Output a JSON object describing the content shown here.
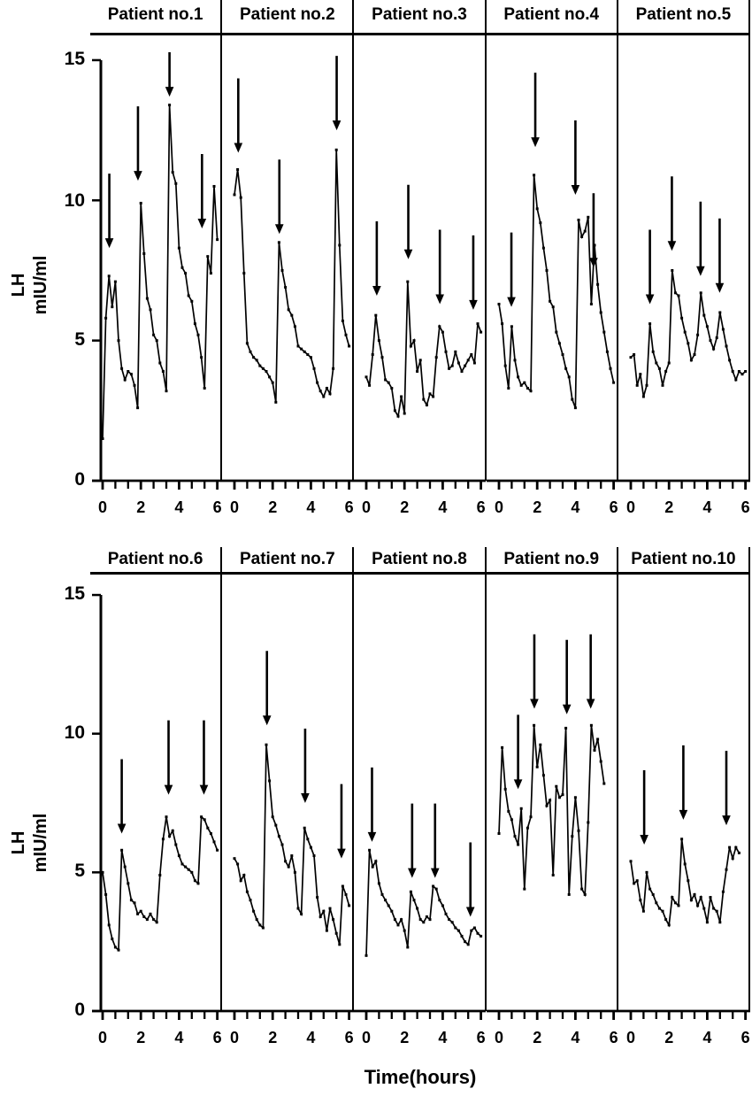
{
  "figure": {
    "ylabel_line1": "LH",
    "ylabel_line2": "mIU/ml",
    "xlabel": "Time(hours)",
    "y_ticks": [
      0,
      5,
      10,
      15
    ],
    "x_ticks": [
      0,
      2,
      4,
      6
    ]
  },
  "chart_data": {
    "type": "line",
    "title": "",
    "xlabel": "Time(hours)",
    "ylabel": "LH mIU/ml",
    "xlim": [
      0,
      6
    ],
    "ylim": [
      0,
      15
    ],
    "x_ticks": [
      0,
      2,
      4,
      6
    ],
    "y_ticks": [
      0,
      5,
      10,
      15
    ],
    "grid": false,
    "legend": "none",
    "sample_interval_hours": 0.1667,
    "marker": "square",
    "line_color": "#000000",
    "annotation_symbol": "down-arrow (LH pulse)",
    "panels": [
      {
        "label": "Patient no.1",
        "arrows": [
          {
            "t": 0.35,
            "tip": 8.3
          },
          {
            "t": 1.85,
            "tip": 10.7
          },
          {
            "t": 3.5,
            "tip": 13.7
          },
          {
            "t": 5.2,
            "tip": 9.0
          }
        ],
        "values": [
          1.5,
          5.8,
          7.3,
          6.2,
          7.1,
          5.0,
          4.0,
          3.6,
          3.9,
          3.8,
          3.4,
          2.6,
          9.9,
          8.1,
          6.5,
          6.1,
          5.2,
          5.0,
          4.2,
          3.9,
          3.2,
          13.4,
          11.0,
          10.6,
          8.3,
          7.6,
          7.4,
          6.6,
          6.4,
          5.6,
          5.2,
          4.4,
          3.3,
          8.0,
          7.4,
          10.5,
          8.6
        ]
      },
      {
        "label": "Patient no.2",
        "arrows": [
          {
            "t": 0.2,
            "tip": 11.7
          },
          {
            "t": 2.35,
            "tip": 8.8
          },
          {
            "t": 5.35,
            "tip": 12.5
          }
        ],
        "values": [
          10.2,
          11.1,
          10.1,
          7.4,
          4.9,
          4.6,
          4.4,
          4.3,
          4.1,
          4.0,
          3.9,
          3.7,
          3.5,
          2.8,
          8.5,
          7.5,
          6.9,
          6.1,
          5.9,
          5.5,
          4.8,
          4.7,
          4.6,
          4.5,
          4.4,
          4.0,
          3.5,
          3.2,
          3.0,
          3.3,
          3.1,
          4.0,
          11.8,
          8.4,
          5.7,
          5.2,
          4.8
        ]
      },
      {
        "label": "Patient no.3",
        "arrows": [
          {
            "t": 0.55,
            "tip": 6.6
          },
          {
            "t": 2.2,
            "tip": 7.9
          },
          {
            "t": 3.85,
            "tip": 6.3
          },
          {
            "t": 5.6,
            "tip": 6.1
          }
        ],
        "values": [
          3.7,
          3.4,
          4.5,
          5.9,
          5.0,
          4.4,
          3.6,
          3.5,
          3.3,
          2.5,
          2.3,
          3.0,
          2.4,
          7.1,
          4.8,
          5.0,
          3.9,
          4.3,
          2.9,
          2.7,
          3.1,
          3.0,
          4.4,
          5.5,
          5.3,
          4.6,
          4.0,
          4.1,
          4.6,
          4.2,
          3.9,
          4.1,
          4.3,
          4.5,
          4.2,
          5.6,
          5.3
        ]
      },
      {
        "label": "Patient no.4",
        "arrows": [
          {
            "t": 0.65,
            "tip": 6.2
          },
          {
            "t": 1.9,
            "tip": 11.9
          },
          {
            "t": 4.0,
            "tip": 10.2
          },
          {
            "t": 4.95,
            "tip": 7.6
          }
        ],
        "values": [
          6.3,
          5.6,
          4.1,
          3.3,
          5.5,
          4.3,
          3.7,
          3.4,
          3.5,
          3.3,
          3.2,
          10.9,
          9.7,
          9.2,
          8.3,
          7.5,
          6.4,
          6.2,
          5.3,
          4.9,
          4.5,
          4.0,
          3.7,
          2.9,
          2.6,
          9.3,
          8.7,
          8.9,
          9.4,
          6.3,
          8.4,
          7.0,
          6.0,
          5.3,
          4.6,
          4.0,
          3.5
        ]
      },
      {
        "label": "Patient no.5",
        "arrows": [
          {
            "t": 1.0,
            "tip": 6.3
          },
          {
            "t": 2.15,
            "tip": 8.2
          },
          {
            "t": 3.65,
            "tip": 7.3
          },
          {
            "t": 4.65,
            "tip": 6.7
          }
        ],
        "values": [
          4.4,
          4.5,
          3.4,
          3.8,
          3.0,
          3.4,
          5.6,
          4.6,
          4.2,
          4.0,
          3.4,
          3.9,
          4.2,
          7.5,
          6.7,
          6.6,
          5.8,
          5.3,
          4.9,
          4.3,
          4.5,
          5.2,
          6.7,
          5.9,
          5.5,
          5.0,
          4.7,
          5.1,
          6.0,
          5.4,
          4.8,
          4.3,
          3.9,
          3.6,
          3.9,
          3.8,
          3.9
        ]
      },
      {
        "label": "Patient no.6",
        "arrows": [
          {
            "t": 1.0,
            "tip": 6.4
          },
          {
            "t": 3.45,
            "tip": 7.8
          },
          {
            "t": 5.3,
            "tip": 7.8
          }
        ],
        "values": [
          5.0,
          4.2,
          3.1,
          2.6,
          2.3,
          2.2,
          5.8,
          5.2,
          4.6,
          4.0,
          3.9,
          3.5,
          3.6,
          3.4,
          3.3,
          3.5,
          3.3,
          3.2,
          4.9,
          6.2,
          7.0,
          6.3,
          6.5,
          6.0,
          5.6,
          5.3,
          5.2,
          5.1,
          5.0,
          4.7,
          4.6,
          7.0,
          6.9,
          6.6,
          6.4,
          6.1,
          5.8
        ]
      },
      {
        "label": "Patient no.7",
        "arrows": [
          {
            "t": 1.7,
            "tip": 10.3
          },
          {
            "t": 3.7,
            "tip": 7.5
          },
          {
            "t": 5.6,
            "tip": 5.5
          }
        ],
        "values": [
          5.5,
          5.3,
          4.7,
          4.9,
          4.3,
          4.0,
          3.6,
          3.3,
          3.1,
          3.0,
          9.6,
          8.3,
          7.0,
          6.7,
          6.3,
          6.0,
          5.4,
          5.2,
          5.6,
          5.0,
          3.7,
          3.5,
          6.6,
          6.2,
          5.9,
          5.6,
          4.1,
          3.4,
          3.6,
          2.9,
          3.7,
          3.3,
          2.8,
          2.4,
          4.5,
          4.2,
          3.8
        ]
      },
      {
        "label": "Patient no.8",
        "arrows": [
          {
            "t": 0.3,
            "tip": 6.1
          },
          {
            "t": 2.4,
            "tip": 4.8
          },
          {
            "t": 3.6,
            "tip": 4.8
          },
          {
            "t": 5.45,
            "tip": 3.4
          }
        ],
        "values": [
          2.0,
          5.8,
          5.2,
          5.4,
          4.6,
          4.2,
          4.0,
          3.8,
          3.6,
          3.3,
          3.1,
          3.3,
          2.9,
          2.3,
          4.3,
          4.0,
          3.7,
          3.3,
          3.2,
          3.4,
          3.3,
          4.5,
          4.4,
          4.0,
          3.8,
          3.5,
          3.3,
          3.2,
          3.0,
          2.9,
          2.7,
          2.5,
          2.4,
          2.9,
          3.0,
          2.8,
          2.7
        ]
      },
      {
        "label": "Patient no.9",
        "arrows": [
          {
            "t": 1.0,
            "tip": 8.0
          },
          {
            "t": 1.85,
            "tip": 10.9
          },
          {
            "t": 3.55,
            "tip": 10.7
          },
          {
            "t": 4.8,
            "tip": 10.9
          }
        ],
        "values": [
          6.4,
          9.5,
          8.0,
          7.2,
          6.9,
          6.3,
          6.0,
          7.3,
          4.4,
          6.6,
          7.0,
          10.3,
          8.8,
          9.6,
          8.5,
          7.4,
          7.6,
          4.9,
          8.1,
          7.7,
          7.8,
          10.2,
          4.2,
          6.3,
          7.7,
          6.5,
          4.4,
          4.2,
          6.8,
          10.3,
          9.4,
          9.8,
          9.0,
          8.2,
          null,
          null,
          null
        ]
      },
      {
        "label": "Patient no.10",
        "arrows": [
          {
            "t": 0.7,
            "tip": 6.0
          },
          {
            "t": 2.75,
            "tip": 6.9
          },
          {
            "t": 5.0,
            "tip": 6.7
          }
        ],
        "values": [
          5.4,
          4.6,
          4.7,
          4.0,
          3.6,
          5.0,
          4.4,
          4.2,
          3.9,
          3.7,
          3.6,
          3.3,
          3.1,
          4.1,
          3.9,
          3.8,
          6.2,
          5.3,
          4.7,
          4.0,
          4.2,
          3.8,
          4.1,
          3.7,
          3.2,
          4.1,
          3.7,
          3.6,
          3.2,
          4.3,
          5.1,
          5.9,
          5.5,
          5.9,
          5.7,
          null,
          null
        ]
      }
    ]
  }
}
